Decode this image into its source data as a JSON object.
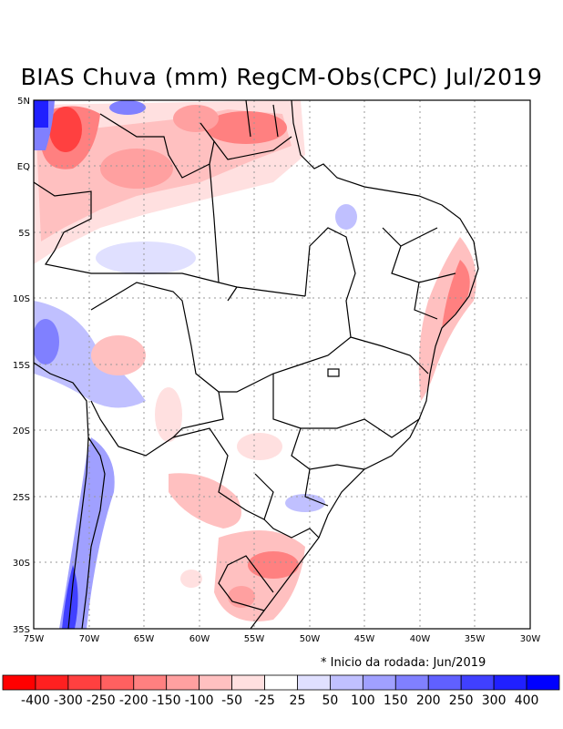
{
  "title": "BIAS Chuva (mm) RegCM-Obs(CPC) Jul/2019",
  "note": "* Inicio da rodada: Jun/2019",
  "lat_labels": [
    "5N",
    "EQ",
    "5S",
    "10S",
    "15S",
    "20S",
    "25S",
    "30S",
    "35S"
  ],
  "lon_labels": [
    "75W",
    "70W",
    "65W",
    "60W",
    "55W",
    "50W",
    "45W",
    "40W",
    "35W",
    "30W"
  ],
  "colorbar": {
    "colors": [
      "#ff0000",
      "#ff2020",
      "#ff4040",
      "#ff6060",
      "#ff8080",
      "#ffa0a0",
      "#ffc0c0",
      "#ffe0e0",
      "#ffffff",
      "#e0e0ff",
      "#c0c0ff",
      "#a0a0ff",
      "#8080ff",
      "#6060ff",
      "#4040ff",
      "#2020ff",
      "#0000ff"
    ],
    "labels": [
      "-400",
      "-300",
      "-250",
      "-200",
      "-150",
      "-100",
      "-50",
      "-25",
      "25",
      "50",
      "100",
      "150",
      "200",
      "250",
      "300",
      "400"
    ]
  }
}
